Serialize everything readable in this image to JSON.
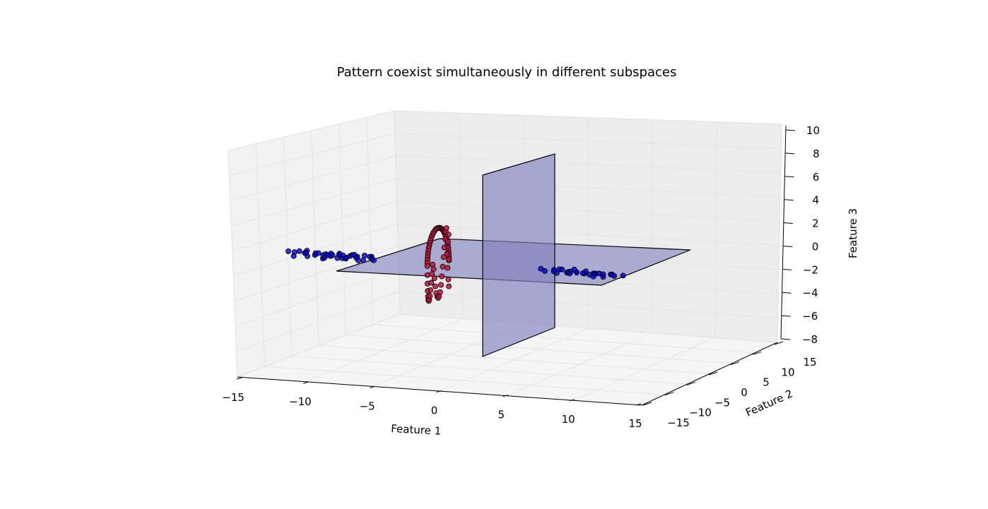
{
  "chart_data": {
    "type": "scatter",
    "title": "Pattern coexist simultaneously in different subspaces",
    "xlabel": "Feature 1",
    "ylabel": "Feature 2",
    "zlabel": "Feature 3",
    "xlim": [
      -15,
      15
    ],
    "ylim": [
      -15,
      15
    ],
    "zlim": [
      -8,
      10
    ],
    "x_ticks": [
      "−15",
      "−10",
      "−5",
      "0",
      "5",
      "10",
      "15"
    ],
    "y_ticks": [
      "−15",
      "−10",
      "−5",
      "0",
      "5",
      "10",
      "15"
    ],
    "z_ticks": [
      "−8",
      "−6",
      "−4",
      "−2",
      "0",
      "2",
      "4",
      "6",
      "8",
      "10"
    ],
    "grid": true,
    "planes": [
      {
        "orientation": "horizontal",
        "z": 0,
        "color": "#8080c0"
      },
      {
        "orientation": "vertical",
        "x": 0,
        "color": "#8080c0"
      }
    ],
    "series": [
      {
        "type": "cluster",
        "color": "#0000cc",
        "x": [
          -11.2,
          -10.6,
          -10.1,
          -9.7,
          -9.3,
          -8.9,
          -8.6,
          -8.2,
          -7.9,
          -7.6,
          -7.2,
          -6.9,
          -6.5,
          -6.2,
          -5.8,
          -5.5,
          -5.1,
          -4.7,
          -10.9,
          -10.3,
          -9.5,
          -9.0,
          -8.4,
          -8.0,
          -7.4,
          -7.0,
          -6.6,
          -6.0,
          -5.6,
          -5.2,
          -8.8,
          -8.1,
          -7.3,
          -6.7,
          -9.8,
          -6.3,
          -4.9,
          -8.5
        ],
        "y": [
          0.2,
          -0.3,
          0.5,
          -0.1,
          0.4,
          -0.5,
          0.1,
          0.6,
          -0.2,
          0.3,
          -0.4,
          0.2,
          -0.1,
          0.5,
          -0.3,
          0.1,
          0.4,
          -0.2,
          0.6,
          0.0,
          -0.5,
          0.3,
          -0.1,
          0.4,
          0.2,
          -0.3,
          0.5,
          -0.2,
          0.1,
          0.3,
          0.7,
          -0.6,
          0.6,
          -0.4,
          0.0,
          0.2,
          -0.1,
          0.8
        ],
        "z": [
          0.1,
          -0.2,
          0.0,
          0.3,
          -0.1,
          0.2,
          -0.3,
          0.1,
          0.0,
          -0.2,
          0.2,
          -0.1,
          0.1,
          0.0,
          -0.2,
          0.2,
          0.1,
          -0.1,
          0.0,
          0.2,
          -0.1,
          0.1,
          -0.2,
          0.0,
          0.2,
          -0.1,
          0.1,
          0.0,
          -0.2,
          0.1,
          -0.1,
          0.2,
          0.0,
          -0.1,
          0.1,
          0.2,
          0.0,
          -0.1
        ]
      },
      {
        "type": "cluster",
        "color": "#0000cc",
        "x": [
          7.5,
          8.0,
          8.6,
          9.0,
          9.4,
          9.8,
          10.2,
          10.6,
          11.0,
          11.4,
          11.8,
          12.2,
          12.6,
          13.0,
          8.3,
          8.8,
          9.6,
          10.4,
          10.9,
          11.6,
          12.0,
          12.9,
          9.2,
          10.0,
          11.2,
          12.4,
          10.7,
          9.9,
          11.8,
          13.6
        ],
        "y": [
          0.3,
          -0.2,
          0.5,
          0.0,
          0.4,
          -0.4,
          0.2,
          0.6,
          -0.1,
          0.3,
          -0.3,
          0.1,
          0.5,
          -0.2,
          0.7,
          -0.5,
          0.6,
          -0.3,
          0.8,
          0.2,
          -0.1,
          0.4,
          0.0,
          -0.6,
          0.9,
          -0.4,
          0.1,
          0.5,
          -0.7,
          0.3
        ],
        "z": [
          0.1,
          0.0,
          -0.2,
          0.2,
          -0.1,
          0.1,
          0.0,
          -0.1,
          0.2,
          0.0,
          0.1,
          -0.2,
          0.0,
          0.1,
          -0.1,
          0.2,
          0.0,
          0.1,
          -0.2,
          0.0,
          0.1,
          -0.1,
          0.2,
          0.0,
          -0.1,
          0.1,
          0.0,
          0.2,
          -0.1,
          0.0
        ]
      },
      {
        "type": "ring",
        "color": "#c0103a",
        "x": [
          0,
          0,
          0,
          0,
          0,
          0,
          0,
          0,
          0,
          0,
          0,
          0,
          0,
          0,
          0,
          0,
          0,
          0,
          0,
          0,
          0,
          0,
          0,
          0,
          0,
          0,
          0,
          0,
          0,
          0,
          0,
          0,
          0,
          0,
          0,
          0,
          0,
          0,
          0,
          0,
          0,
          0,
          0,
          0,
          0,
          0,
          0,
          0,
          0,
          0,
          0,
          0,
          0,
          0,
          0,
          0,
          0,
          0,
          0,
          0,
          0,
          0,
          0,
          0,
          0,
          0,
          0,
          0,
          0,
          0,
          0,
          0
        ],
        "y": [
          2.0,
          1.99,
          1.97,
          1.93,
          1.88,
          1.81,
          1.73,
          1.64,
          1.53,
          1.41,
          1.29,
          1.15,
          1.0,
          0.85,
          0.68,
          0.52,
          0.35,
          0.17,
          0.0,
          -0.17,
          -0.35,
          -0.52,
          -0.68,
          -0.85,
          -1.0,
          -1.15,
          -1.29,
          -1.41,
          -1.53,
          -1.64,
          -1.73,
          -1.81,
          -1.88,
          -1.93,
          -1.97,
          -1.99,
          -2.0,
          -1.99,
          -1.97,
          -1.93,
          -1.88,
          -1.81,
          -1.73,
          -1.64,
          -1.53,
          -1.41,
          -1.29,
          -1.15,
          -1.0,
          -0.85,
          -0.68,
          -0.52,
          -0.35,
          -0.17,
          0.0,
          0.17,
          0.35,
          0.52,
          0.68,
          0.85,
          1.0,
          1.15,
          1.29,
          1.41,
          1.53,
          1.64,
          1.73,
          1.81,
          1.88,
          1.93,
          1.97,
          1.99
        ],
        "z": [
          0.0,
          0.26,
          0.52,
          0.78,
          1.03,
          1.27,
          1.5,
          1.72,
          1.93,
          2.12,
          2.3,
          2.45,
          2.6,
          2.72,
          2.82,
          2.9,
          2.96,
          2.99,
          3.0,
          2.99,
          2.96,
          2.9,
          2.82,
          2.72,
          2.6,
          2.45,
          2.3,
          2.12,
          1.93,
          1.72,
          1.5,
          1.27,
          1.03,
          0.78,
          0.52,
          0.26,
          0.0,
          -0.78,
          -1.5,
          -2.12,
          -2.6,
          -2.9,
          -3.0,
          -2.9,
          -2.6,
          -2.12,
          -1.5,
          -0.78,
          0.0,
          -0.4,
          -1.2,
          -1.9,
          -2.5,
          -2.8,
          -2.95,
          -2.8,
          -2.5,
          -1.9,
          -1.2,
          -0.4,
          0.4,
          1.2,
          1.9,
          2.5,
          2.8,
          0.6,
          -0.6,
          1.6,
          -1.6,
          2.2,
          -2.2,
          0.1
        ]
      }
    ]
  }
}
